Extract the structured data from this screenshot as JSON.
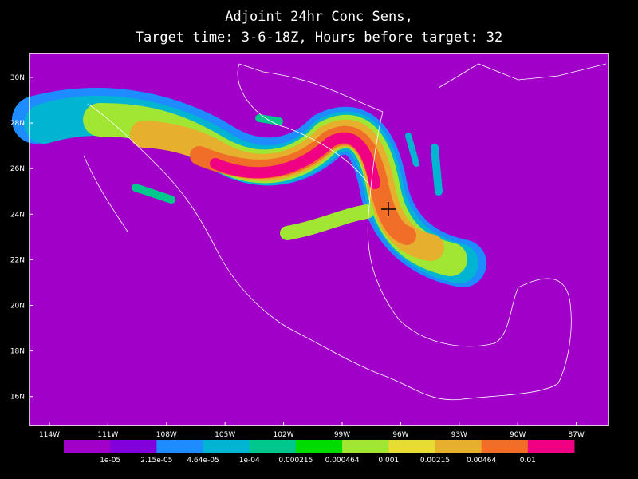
{
  "title": {
    "line1": "Adjoint 24hr Conc Sens,",
    "line2": "Target time: 3-6-18Z, Hours before target: 32"
  },
  "lat_labels": [
    "30N",
    "28N",
    "26N",
    "24N",
    "22N",
    "20N",
    "18N",
    "16N"
  ],
  "lon_labels": [
    "114W",
    "111W",
    "108W",
    "105W",
    "102W",
    "99W",
    "96W",
    "93W",
    "90W",
    "87W"
  ],
  "colorbar": {
    "colors": [
      "#a000c8",
      "#8200dc",
      "#1e8cff",
      "#00b4d2",
      "#00c88c",
      "#00dc00",
      "#a0e632",
      "#e6dc32",
      "#e6af2d",
      "#f06e28",
      "#f00082"
    ],
    "labels": [
      "1e-05",
      "2.15e-05",
      "4.64e-05",
      "1e-04",
      "0.000215",
      "0.000464",
      "0.001",
      "0.00215",
      "0.00464",
      "0.01"
    ]
  }
}
